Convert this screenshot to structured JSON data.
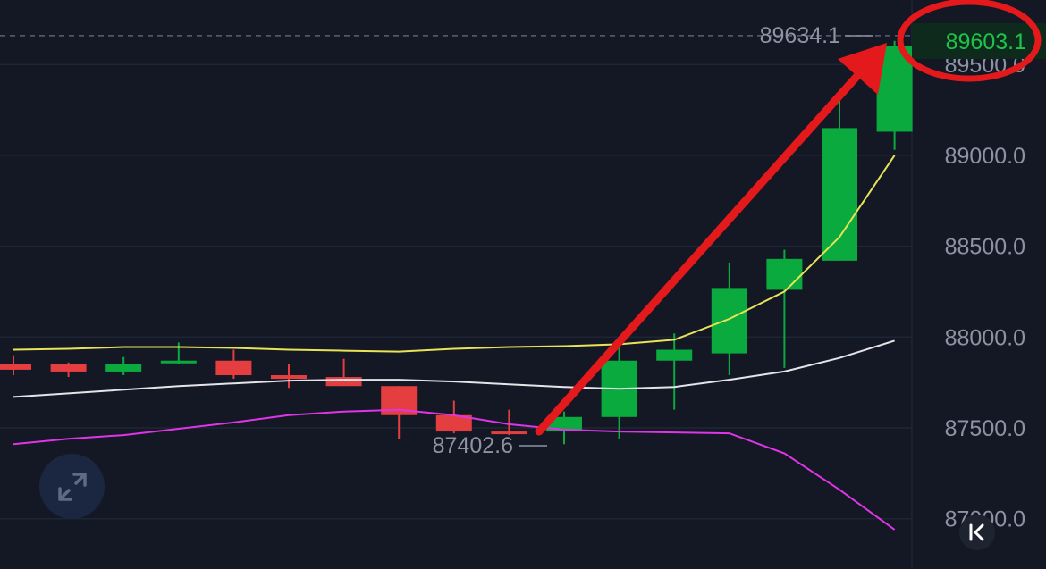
{
  "chart_data": {
    "type": "candlestick",
    "ylim": [
      86900,
      89700
    ],
    "yticks": [
      "87000.0",
      "87500.0",
      "88000.0",
      "88500.0",
      "89000.0",
      "89500.0"
    ],
    "ytick_values": [
      87000,
      87500,
      88000,
      88500,
      89000,
      89500
    ],
    "grid": true,
    "candles": [
      {
        "o": 87850,
        "h": 87900,
        "l": 87790,
        "c": 87820
      },
      {
        "o": 87850,
        "h": 87860,
        "l": 87780,
        "c": 87810
      },
      {
        "o": 87810,
        "h": 87890,
        "l": 87790,
        "c": 87850
      },
      {
        "o": 87860,
        "h": 87970,
        "l": 87850,
        "c": 87870
      },
      {
        "o": 87870,
        "h": 87930,
        "l": 87770,
        "c": 87790
      },
      {
        "o": 87790,
        "h": 87850,
        "l": 87720,
        "c": 87770
      },
      {
        "o": 87780,
        "h": 87880,
        "l": 87730,
        "c": 87730
      },
      {
        "o": 87730,
        "h": 87730,
        "l": 87440,
        "c": 87570
      },
      {
        "o": 87570,
        "h": 87650,
        "l": 87470,
        "c": 87480
      },
      {
        "o": 87480,
        "h": 87600,
        "l": 87460,
        "c": 87470
      },
      {
        "o": 87480,
        "h": 87590,
        "l": 87410,
        "c": 87560
      },
      {
        "o": 87560,
        "h": 87960,
        "l": 87440,
        "c": 87870
      },
      {
        "o": 87870,
        "h": 88020,
        "l": 87600,
        "c": 87930
      },
      {
        "o": 87910,
        "h": 88410,
        "l": 87790,
        "c": 88270
      },
      {
        "o": 88260,
        "h": 88480,
        "l": 87830,
        "c": 88430
      },
      {
        "o": 88420,
        "h": 89330,
        "l": 88420,
        "c": 89150
      },
      {
        "o": 89130,
        "h": 89630,
        "l": 89030,
        "c": 89600
      }
    ],
    "series": [
      {
        "color": "#e8e357",
        "values": [
          87930,
          87935,
          87945,
          87945,
          87940,
          87930,
          87925,
          87920,
          87935,
          87945,
          87950,
          87960,
          87985,
          88100,
          88250,
          88550,
          89000
        ]
      },
      {
        "color": "#e4e4ea",
        "values": [
          87670,
          87690,
          87710,
          87730,
          87745,
          87760,
          87765,
          87765,
          87755,
          87740,
          87725,
          87715,
          87725,
          87765,
          87810,
          87885,
          87980
        ]
      },
      {
        "color": "#e034e8",
        "values": [
          87410,
          87440,
          87460,
          87495,
          87530,
          87570,
          87590,
          87600,
          87570,
          87520,
          87490,
          87480,
          87475,
          87470,
          87360,
          87160,
          86940
        ]
      }
    ],
    "high_marker": {
      "label": "89634.1",
      "value": 89634.1
    },
    "low_marker": {
      "label": "87402.6",
      "value": 87402.6
    },
    "current_price": {
      "label": "89603.1",
      "value": 89603.1
    },
    "colors": {
      "up": "#0aaa3e",
      "down": "#e43e40",
      "annotation": "#e3191c"
    }
  }
}
